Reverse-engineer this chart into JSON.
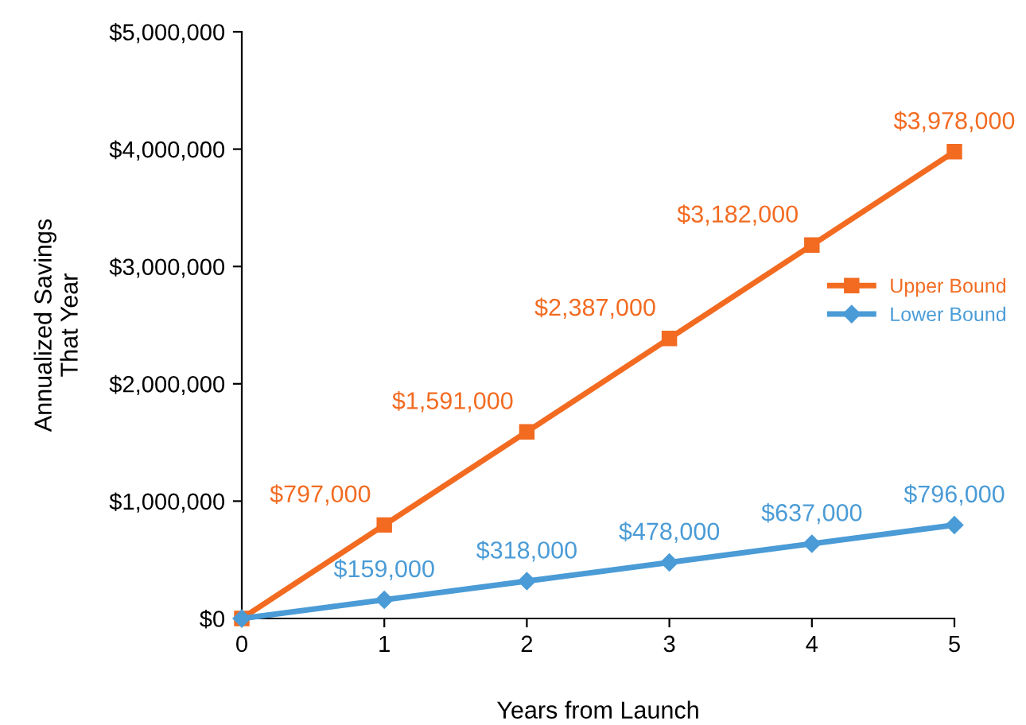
{
  "chart_data": {
    "type": "line",
    "xlabel": "Years from Launch",
    "ylabel": "Annualized Savings\nThat Year",
    "x": [
      0,
      1,
      2,
      3,
      4,
      5
    ],
    "series": [
      {
        "name": "Upper Bound",
        "color": "#f26b21",
        "marker": "square",
        "values": [
          0,
          797000,
          1591000,
          2387000,
          3182000,
          3978000
        ],
        "value_labels": [
          null,
          "$797,000",
          "$1,591,000",
          "$2,387,000",
          "$3,182,000",
          "$3,978,000"
        ]
      },
      {
        "name": "Lower Bound",
        "color": "#4a9bd6",
        "marker": "diamond",
        "values": [
          0,
          159000,
          318000,
          478000,
          637000,
          796000
        ],
        "value_labels": [
          null,
          "$159,000",
          "$318,000",
          "$478,000",
          "$637,000",
          "$796,000"
        ]
      }
    ],
    "xlim": [
      0,
      5
    ],
    "xticks": [
      0,
      1,
      2,
      3,
      4,
      5
    ],
    "ylim": [
      0,
      5000000
    ],
    "yticks": [
      {
        "value": 0,
        "label": "$0"
      },
      {
        "value": 1000000,
        "label": "$1,000,000"
      },
      {
        "value": 2000000,
        "label": "$2,000,000"
      },
      {
        "value": 3000000,
        "label": "$3,000,000"
      },
      {
        "value": 4000000,
        "label": "$4,000,000"
      },
      {
        "value": 5000000,
        "label": "$5,000,000"
      }
    ],
    "grid": false,
    "legend": "right",
    "line_style": "solid"
  }
}
